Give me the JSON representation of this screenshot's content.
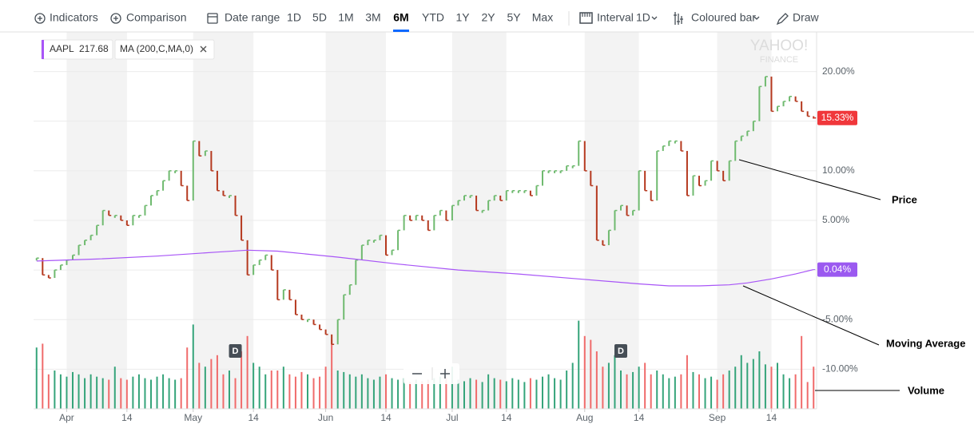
{
  "toolbar": {
    "indicators": "Indicators",
    "comparison": "Comparison",
    "date_range": "Date range",
    "ranges": [
      "1D",
      "5D",
      "1M",
      "3M",
      "6M",
      "YTD",
      "1Y",
      "2Y",
      "5Y",
      "Max"
    ],
    "active_range": 4,
    "interval": "Interval",
    "interval_value": "1D",
    "chart_style": "Coloured bar",
    "draw": "Draw"
  },
  "legend": {
    "symbol": "AAPL",
    "price": "217.68",
    "indicator": "MA (200,C,MA,0)"
  },
  "watermark": [
    "YAHOO!",
    "FINANCE"
  ],
  "chart_data": {
    "type": "bar",
    "ylim": [
      -14,
      24
    ],
    "yticks": [
      {
        "value": 20,
        "label": "20.00%"
      },
      {
        "value": 10,
        "label": "10.00%"
      },
      {
        "value": 5,
        "label": "5.00%"
      },
      {
        "value": -5,
        "label": "-5.00%"
      },
      {
        "value": -10,
        "label": "-10.00%"
      }
    ],
    "grid_values": [
      20,
      15,
      10,
      5,
      0,
      -5,
      -10
    ],
    "xlim": [
      -0.5,
      129.5
    ],
    "xticks": [
      {
        "value": 5,
        "label": "Apr"
      },
      {
        "value": 15,
        "label": "14"
      },
      {
        "value": 26,
        "label": "May"
      },
      {
        "value": 36,
        "label": "14"
      },
      {
        "value": 48,
        "label": "Jun"
      },
      {
        "value": 58,
        "label": "14"
      },
      {
        "value": 69,
        "label": "Jul"
      },
      {
        "value": 78,
        "label": "14"
      },
      {
        "value": 91,
        "label": "Aug"
      },
      {
        "value": 100,
        "label": "14"
      },
      {
        "value": 113,
        "label": "Sep"
      },
      {
        "value": 122,
        "label": "14"
      }
    ],
    "series": [
      {
        "name": "AAPL",
        "up_color": "#6fba6f",
        "down_color": "#b5391f",
        "values": [
          1.2,
          -0.5,
          -0.8,
          0,
          0.5,
          1,
          1.5,
          2.5,
          3,
          3.5,
          4.5,
          6,
          5.5,
          5.5,
          5,
          4.5,
          5.5,
          5.5,
          6.5,
          7.5,
          8,
          9,
          10,
          10,
          8.5,
          7,
          13,
          11.5,
          12,
          10,
          8,
          7.5,
          7.5,
          5.5,
          3,
          -0.5,
          0.5,
          1,
          1.5,
          0,
          -3,
          -2,
          -3,
          -4.5,
          -5,
          -5,
          -5.5,
          -6,
          -6.5,
          -7.5,
          -5,
          -2.5,
          -1.5,
          1,
          2.5,
          3,
          3,
          3.5,
          1.5,
          2,
          4,
          5.5,
          5,
          5.5,
          5,
          4,
          5.5,
          6,
          5,
          6.5,
          7,
          7.5,
          7.5,
          6,
          6,
          7,
          7.5,
          7,
          8,
          8,
          8,
          8,
          7.5,
          8.5,
          10,
          10,
          10,
          10,
          10.5,
          10.5,
          13,
          10,
          8.5,
          3,
          2.5,
          4,
          6,
          6.5,
          5.5,
          6,
          10,
          8,
          7,
          12,
          12.5,
          13,
          13,
          12,
          7.5,
          9.5,
          8.5,
          9,
          11,
          10,
          9,
          11,
          13,
          13.5,
          14,
          15,
          18.5,
          19.5,
          16,
          16.5,
          17,
          17.5,
          17,
          16,
          15.5,
          15.33
        ],
        "last_label": "15.33%",
        "label_color": "#f0373b"
      },
      {
        "name": "MA (200,C,MA,0)",
        "color": "#a855f7",
        "x": [
          0,
          10,
          20,
          30,
          35,
          40,
          50,
          60,
          70,
          80,
          90,
          100,
          105,
          110,
          115,
          118,
          122,
          126,
          129
        ],
        "values": [
          0.9,
          1.1,
          1.4,
          1.8,
          2,
          1.9,
          1.3,
          0.6,
          0,
          -0.4,
          -0.9,
          -1.4,
          -1.6,
          -1.6,
          -1.5,
          -1.3,
          -0.9,
          -0.4,
          0.04
        ],
        "last_label": "0.04%",
        "label_color": "#9b59f0"
      }
    ],
    "volume": {
      "ylim": [
        0,
        125
      ],
      "up_color": "#35a47a",
      "down_color": "#f06b6b",
      "values": [
        80,
        85,
        45,
        50,
        45,
        42,
        48,
        45,
        40,
        45,
        42,
        40,
        38,
        55,
        40,
        38,
        42,
        45,
        40,
        38,
        42,
        45,
        40,
        38,
        40,
        80,
        110,
        60,
        55,
        65,
        70,
        45,
        50,
        40,
        75,
        95,
        60,
        55,
        45,
        50,
        50,
        55,
        45,
        42,
        48,
        45,
        40,
        42,
        55,
        90,
        50,
        48,
        45,
        42,
        45,
        40,
        38,
        42,
        45,
        40,
        38,
        40,
        35,
        38,
        36,
        38,
        40,
        42,
        40,
        55,
        38,
        36,
        40,
        38,
        35,
        45,
        40,
        38,
        36,
        40,
        38,
        35,
        40,
        38,
        42,
        45,
        40,
        38,
        50,
        60,
        115,
        95,
        90,
        75,
        55,
        60,
        70,
        50,
        45,
        48,
        55,
        60,
        45,
        50,
        45,
        40,
        42,
        45,
        70,
        48,
        45,
        40,
        42,
        38,
        45,
        50,
        55,
        70,
        60,
        65,
        75,
        58,
        55,
        60,
        45,
        40,
        45,
        95,
        35,
        55
      ]
    },
    "events": [
      {
        "x": 33,
        "label": "D"
      },
      {
        "x": 97,
        "label": "D"
      }
    ],
    "annotations": [
      "Price",
      "Moving Average",
      "Volume"
    ]
  }
}
